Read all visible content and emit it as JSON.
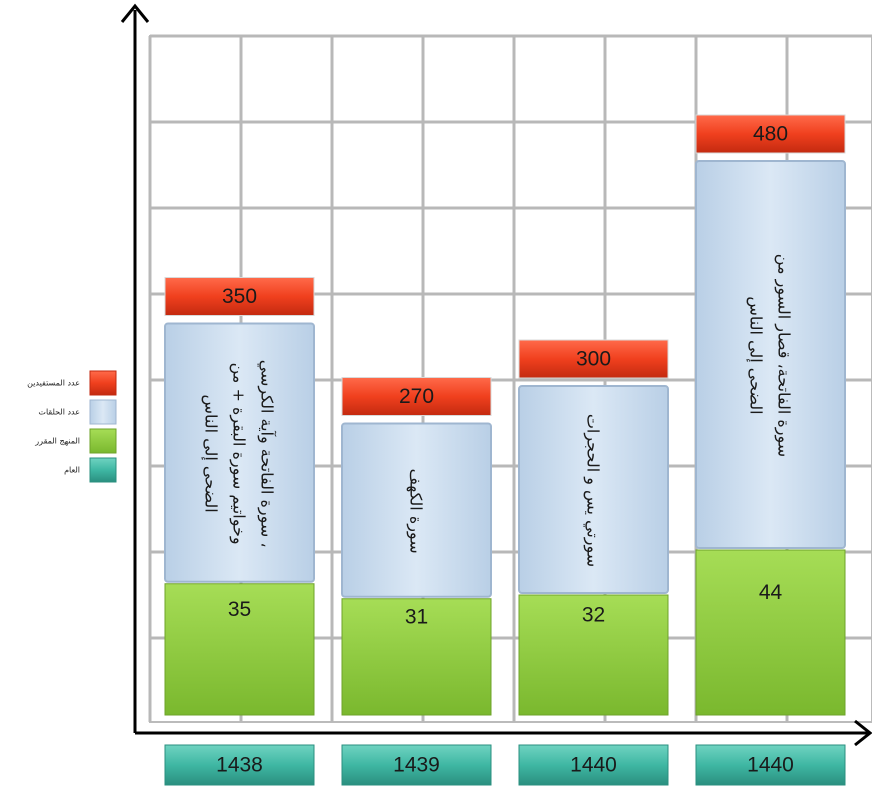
{
  "chart_data": {
    "type": "bar",
    "subtype": "stacked",
    "grid": true,
    "legend_position": "left",
    "categories": [
      "1438",
      "1439",
      "1440",
      "1440"
    ],
    "series": [
      {
        "name": "عدد المستفيدين",
        "color": "#f0401e",
        "values": [
          350,
          270,
          300,
          480
        ]
      },
      {
        "name": "عدد الحلقات",
        "color": "#d3e3f3",
        "values": [
          null,
          null,
          null,
          null
        ]
      },
      {
        "name": "المنهج المقرر",
        "color": "#92d040",
        "labels": [
          "سورة الفاتحة وآية الكرسي ، وخواتيم سورة البقرة + من الضحى إلى الناس",
          "سورة الكهف",
          "سورتي يس و الحجرات",
          "سورة الفاتحة، قصار السور من الضحى إلى الناس"
        ]
      },
      {
        "name": "العام",
        "color": "#3fb7a3",
        "values": [
          "1438",
          "1439",
          "1440",
          "1440"
        ]
      }
    ],
    "group_counts": [
      35,
      31,
      32,
      44
    ]
  }
}
